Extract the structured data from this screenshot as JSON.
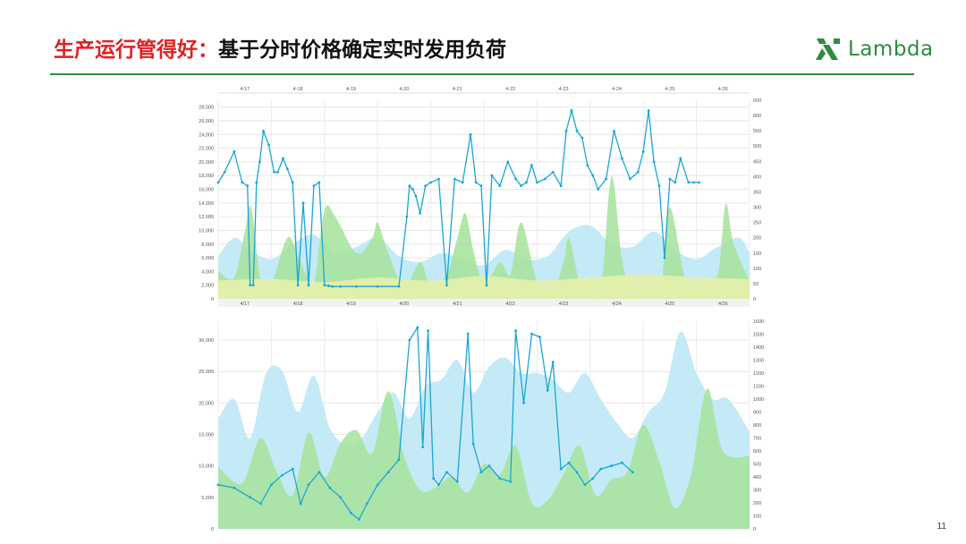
{
  "slide": {
    "title_highlight": "生产运行管得好：",
    "title_rest": "基于分时价格确定实时发用负荷",
    "brand_name": "Lambda",
    "page_number": "11"
  },
  "colors": {
    "title_red": "#e02020",
    "brand_green": "#2e8b3f",
    "load_line": "#1aa6d6",
    "green_area": "#a6e39a",
    "blue_area": "#bfe8f6",
    "yellow_area": "#e6f0a8"
  },
  "chart_data": [
    {
      "type": "line",
      "subtype": "line over area, dual axis",
      "top_axis_labels": [
        "4-17",
        "4-18",
        "4-19",
        "4-20",
        "4-21",
        "4-22",
        "4-23",
        "4-24",
        "4-25",
        "4-26"
      ],
      "x_tick_labels": [
        "4/17",
        "4/18",
        "4/19",
        "4/20",
        "4/21",
        "4/22",
        "4/23",
        "4/24",
        "4/25",
        "4/26"
      ],
      "y_left_ticks": [
        "0",
        "2,000",
        "4,000",
        "6,000",
        "8,000",
        "10,000",
        "12,000",
        "14,000",
        "16,000",
        "18,000",
        "20,000",
        "22,000",
        "24,000",
        "26,000",
        "28,000"
      ],
      "y_right_ticks": [
        "0",
        "50",
        "100",
        "150",
        "200",
        "250",
        "300",
        "350",
        "400",
        "450",
        "500",
        "550",
        "600",
        "650"
      ],
      "ylim_left": [
        0,
        29000
      ],
      "ylim_right": [
        0,
        650
      ],
      "x_range": [
        0,
        10
      ],
      "grid": true,
      "load_series": {
        "axis": "left",
        "x": [
          0,
          0.12,
          0.3,
          0.45,
          0.55,
          0.6,
          0.66,
          0.72,
          0.78,
          0.85,
          0.95,
          1.05,
          1.12,
          1.22,
          1.3,
          1.4,
          1.5,
          1.6,
          1.7,
          1.8,
          1.9,
          2.0,
          2.08,
          2.15,
          2.3,
          2.6,
          3.0,
          3.4,
          3.55,
          3.6,
          3.66,
          3.72,
          3.8,
          3.9,
          4.0,
          4.15,
          4.3,
          4.45,
          4.6,
          4.75,
          4.85,
          4.95,
          5.05,
          5.15,
          5.3,
          5.45,
          5.6,
          5.7,
          5.8,
          5.9,
          6.0,
          6.15,
          6.3,
          6.45,
          6.55,
          6.65,
          6.75,
          6.85,
          6.95,
          7.05,
          7.15,
          7.3,
          7.45,
          7.6,
          7.75,
          7.9,
          8.0,
          8.1,
          8.2,
          8.3,
          8.4,
          8.5,
          8.6,
          8.7,
          8.85,
          8.95,
          9.05
        ],
        "values": [
          17000,
          18500,
          21500,
          17000,
          16500,
          2000,
          2000,
          17000,
          20000,
          24500,
          22500,
          18500,
          18500,
          20500,
          19000,
          17000,
          2000,
          14000,
          2000,
          16500,
          17000,
          2000,
          1900,
          1800,
          1800,
          1800,
          1800,
          1800,
          12000,
          16500,
          16000,
          15000,
          12500,
          16500,
          17000,
          17500,
          2000,
          17500,
          17000,
          24000,
          17000,
          16500,
          2000,
          18000,
          16500,
          20000,
          17500,
          16500,
          17000,
          19500,
          17000,
          17500,
          18500,
          16500,
          24500,
          27500,
          24500,
          23500,
          19500,
          18000,
          16000,
          17500,
          24500,
          20500,
          17500,
          18500,
          21500,
          27500,
          20000,
          16500,
          6000,
          17500,
          17000,
          20500,
          17000,
          17000,
          17000
        ]
      },
      "green_series": {
        "axis": "right",
        "x": [
          0,
          0.3,
          0.5,
          0.62,
          0.8,
          1.0,
          1.3,
          1.5,
          1.7,
          1.8,
          2.0,
          2.2,
          2.6,
          2.9,
          3.0,
          3.2,
          3.5,
          3.8,
          4.0,
          4.3,
          4.5,
          4.65,
          4.8,
          5.0,
          5.3,
          5.5,
          5.7,
          6.0,
          6.3,
          6.5,
          6.6,
          6.8,
          7.0,
          7.2,
          7.4,
          7.6,
          7.8,
          8.0,
          8.2,
          8.35,
          8.5,
          8.8,
          9.1,
          9.4,
          9.55,
          9.7,
          10
        ],
        "values": [
          90,
          70,
          220,
          300,
          60,
          50,
          200,
          140,
          60,
          40,
          290,
          270,
          150,
          200,
          250,
          150,
          40,
          120,
          40,
          80,
          200,
          280,
          160,
          50,
          120,
          80,
          250,
          60,
          30,
          120,
          200,
          60,
          50,
          20,
          400,
          130,
          10,
          40,
          20,
          60,
          300,
          60,
          30,
          80,
          310,
          180,
          60
        ]
      },
      "blue_series": {
        "axis": "right",
        "x": [
          0,
          0.3,
          0.6,
          1.0,
          1.4,
          1.8,
          2.2,
          2.6,
          3.0,
          3.4,
          3.8,
          4.2,
          4.6,
          5.0,
          5.4,
          5.8,
          6.2,
          6.6,
          7.0,
          7.4,
          7.8,
          8.2,
          8.6,
          9.0,
          9.4,
          9.8,
          10
        ],
        "values": [
          140,
          200,
          160,
          130,
          180,
          210,
          150,
          170,
          200,
          140,
          120,
          150,
          130,
          110,
          160,
          130,
          140,
          220,
          240,
          180,
          170,
          220,
          160,
          130,
          170,
          200,
          150
        ]
      },
      "yellow_series": {
        "axis": "right",
        "x": [
          0,
          1,
          2,
          3,
          4,
          5,
          6,
          7,
          8,
          9,
          10
        ],
        "values": [
          60,
          65,
          55,
          70,
          60,
          75,
          60,
          70,
          80,
          70,
          65
        ]
      }
    },
    {
      "type": "line",
      "subtype": "line over area, dual axis",
      "y_left_ticks": [
        "0",
        "5,000",
        "10,000",
        "15,000",
        "20,000",
        "25,000",
        "30,000"
      ],
      "y_right_ticks": [
        "0",
        "100",
        "200",
        "300",
        "400",
        "500",
        "600",
        "700",
        "800",
        "900",
        "1000",
        "1100",
        "1200",
        "1300",
        "1400",
        "1500",
        "1600"
      ],
      "ylim_left": [
        0,
        33000
      ],
      "ylim_right": [
        0,
        1600
      ],
      "x_range": [
        0,
        10
      ],
      "grid": true,
      "load_series": {
        "axis": "left",
        "x": [
          0,
          0.3,
          0.6,
          0.8,
          1.0,
          1.2,
          1.4,
          1.55,
          1.7,
          1.9,
          2.1,
          2.3,
          2.5,
          2.65,
          2.8,
          3.0,
          3.2,
          3.4,
          3.6,
          3.75,
          3.85,
          3.95,
          4.05,
          4.15,
          4.3,
          4.5,
          4.7,
          4.8,
          4.95,
          5.1,
          5.3,
          5.5,
          5.6,
          5.75,
          5.9,
          6.05,
          6.2,
          6.3,
          6.45,
          6.6,
          6.75,
          6.9,
          7.05,
          7.2,
          7.4,
          7.6,
          7.8
        ],
        "values": [
          7000,
          6500,
          5000,
          4000,
          7000,
          8500,
          9500,
          4000,
          7000,
          9000,
          6500,
          5000,
          2500,
          1500,
          4000,
          7000,
          9000,
          11000,
          30000,
          32000,
          13000,
          31500,
          8000,
          7000,
          9000,
          7500,
          31000,
          13500,
          9000,
          10000,
          8000,
          7500,
          31500,
          20000,
          31000,
          30500,
          22000,
          26500,
          9500,
          10500,
          9000,
          7000,
          8000,
          9500,
          10000,
          10500,
          9000
        ]
      },
      "blue_series": {
        "axis": "right",
        "x": [
          0,
          0.3,
          0.6,
          0.9,
          1.2,
          1.5,
          1.8,
          2.1,
          2.4,
          2.7,
          3.0,
          3.3,
          3.6,
          3.9,
          4.2,
          4.5,
          4.8,
          5.1,
          5.4,
          5.7,
          6.0,
          6.3,
          6.6,
          6.9,
          7.2,
          7.5,
          7.8,
          8.1,
          8.4,
          8.7,
          9.0,
          9.3,
          9.6,
          10
        ],
        "values": [
          850,
          1000,
          700,
          1200,
          1220,
          900,
          1180,
          780,
          650,
          700,
          900,
          1050,
          850,
          1100,
          1150,
          1300,
          1050,
          1250,
          1320,
          1200,
          1200,
          1150,
          1050,
          1200,
          1000,
          820,
          700,
          900,
          1050,
          1520,
          1200,
          1000,
          1000,
          750
        ]
      },
      "green_series": {
        "axis": "right",
        "x": [
          0,
          0.3,
          0.5,
          0.8,
          1.1,
          1.4,
          1.7,
          2.0,
          2.3,
          2.6,
          2.9,
          3.2,
          3.5,
          3.8,
          4.1,
          4.4,
          4.7,
          5.0,
          5.3,
          5.6,
          5.9,
          6.2,
          6.5,
          6.8,
          7.1,
          7.4,
          7.7,
          8.0,
          8.3,
          8.6,
          8.9,
          9.2,
          9.5,
          10
        ],
        "values": [
          480,
          360,
          380,
          700,
          440,
          260,
          740,
          400,
          660,
          760,
          580,
          1060,
          560,
          300,
          320,
          400,
          280,
          500,
          420,
          640,
          200,
          220,
          420,
          640,
          260,
          380,
          440,
          800,
          520,
          160,
          420,
          1080,
          600,
          560
        ]
      }
    }
  ]
}
